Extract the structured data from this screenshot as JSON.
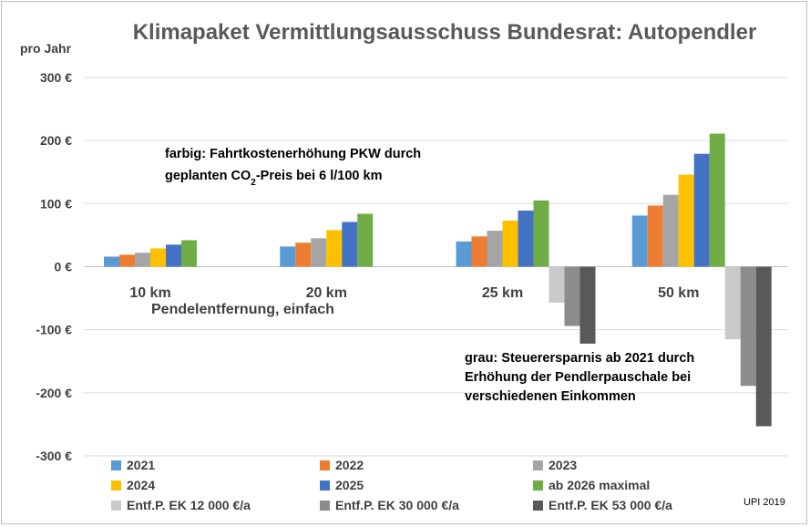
{
  "chart_data": {
    "type": "bar",
    "title": "Klimapaket Vermittlungsausschuss Bundesrat: Autopendler",
    "ylabel": "pro Jahr",
    "xlabel": "Pendelentfernung, einfach",
    "ylim": [
      -300,
      300
    ],
    "yticks": [
      {
        "value": 300,
        "label": "300 €"
      },
      {
        "value": 200,
        "label": "200 €"
      },
      {
        "value": 100,
        "label": "100 €"
      },
      {
        "value": 0,
        "label": "0 €"
      },
      {
        "value": -100,
        "label": "-100 €"
      },
      {
        "value": -200,
        "label": "-200 €"
      },
      {
        "value": -300,
        "label": "-300 €"
      }
    ],
    "grid": true,
    "legend_position": "bottom",
    "categories": [
      "10 km",
      "20 km",
      "25 km",
      "50 km"
    ],
    "series": [
      {
        "name": "2021",
        "color": "#5b9bd5",
        "values": [
          16,
          32,
          40,
          81
        ]
      },
      {
        "name": "2022",
        "color": "#ed7d31",
        "values": [
          19,
          38,
          48,
          97
        ]
      },
      {
        "name": "2023",
        "color": "#a5a5a5",
        "values": [
          22,
          45,
          57,
          114
        ]
      },
      {
        "name": "2024",
        "color": "#ffc000",
        "values": [
          29,
          58,
          73,
          146
        ]
      },
      {
        "name": "2025",
        "color": "#4472c4",
        "values": [
          35,
          71,
          89,
          179
        ]
      },
      {
        "name": "ab 2026 maximal",
        "color": "#70ad47",
        "values": [
          42,
          84,
          105,
          211
        ]
      },
      {
        "name": "Entf.P. EK 12 000 €/a",
        "color": "#c9c9c9",
        "values": [
          0,
          0,
          -57,
          -115
        ]
      },
      {
        "name": "Entf.P. EK 30 000 €/a",
        "color": "#8c8c8c",
        "values": [
          0,
          0,
          -94,
          -189
        ]
      },
      {
        "name": "Entf.P. EK 53 000 €/a",
        "color": "#595959",
        "values": [
          0,
          0,
          -122,
          -253
        ]
      }
    ],
    "annotations": {
      "colored": {
        "line1": "farbig: Fahrtkostenerhöhung PKW durch",
        "line2_prefix": "geplanten CO",
        "line2_sub": "2",
        "line2_suffix": "-Preis bei 6 l/100 km"
      },
      "grey": {
        "line1": "grau: Steuerersparnis ab 2021 durch",
        "line2": "Erhöhung der Pendlerpauschale bei",
        "line3": "verschiedenen Einkommen"
      }
    },
    "credit": "UPI 2019"
  }
}
